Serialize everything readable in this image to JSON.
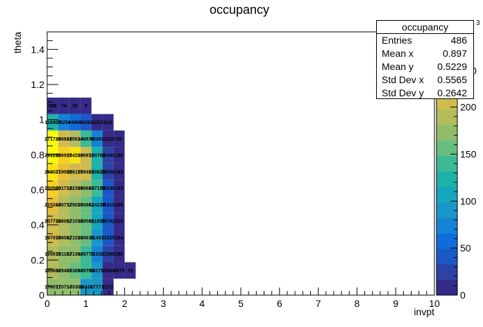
{
  "chart_data": {
    "type": "heatmap",
    "title": "occupancy",
    "xlabel": "invpt",
    "ylabel": "theta",
    "xlim": [
      0,
      10
    ],
    "ylim": [
      0,
      1.5
    ],
    "x_ticks": [
      "0",
      "1",
      "2",
      "3",
      "4",
      "5",
      "6",
      "7",
      "8",
      "9",
      "10"
    ],
    "y_ticks": [
      "0",
      "0.2",
      "0.4",
      "0.6",
      "0.8",
      "1",
      "1.2",
      "1.4"
    ],
    "x_bin_width": 0.2857,
    "y_bin_width": 0.0938,
    "cells": [
      {
        "x": 0,
        "y": 0,
        "label": "170071",
        "value": 170
      },
      {
        "x": 1,
        "y": 0,
        "label": "170714",
        "value": 170
      },
      {
        "x": 2,
        "y": 0,
        "label": "170302",
        "value": 170
      },
      {
        "x": 3,
        "y": 0,
        "label": "94432",
        "value": 94
      },
      {
        "x": 4,
        "y": 0,
        "label": "87771",
        "value": 88
      },
      {
        "x": 5,
        "y": 0,
        "label": "5172",
        "value": 5
      },
      {
        "x": 0,
        "y": 1,
        "label": "189658",
        "value": 190
      },
      {
        "x": 1,
        "y": 1,
        "label": "178407",
        "value": 178
      },
      {
        "x": 2,
        "y": 1,
        "label": "163890",
        "value": 164
      },
      {
        "x": 3,
        "y": 1,
        "label": "139763",
        "value": 140
      },
      {
        "x": 4,
        "y": 1,
        "label": "84175",
        "value": 84
      },
      {
        "x": 5,
        "y": 1,
        "label": "15544",
        "value": 16
      },
      {
        "x": 6,
        "y": 1,
        "label": "9675",
        "value": 10
      },
      {
        "x": 7,
        "y": 1,
        "label": "73",
        "value": 0.07
      },
      {
        "x": 0,
        "y": 2,
        "label": "195675",
        "value": 196
      },
      {
        "x": 1,
        "y": 2,
        "label": "181183",
        "value": 181
      },
      {
        "x": 2,
        "y": 2,
        "label": "171360",
        "value": 171
      },
      {
        "x": 3,
        "y": 2,
        "label": "139778",
        "value": 140
      },
      {
        "x": 4,
        "y": 2,
        "label": "71192",
        "value": 71
      },
      {
        "x": 5,
        "y": 2,
        "label": "21088",
        "value": 21
      },
      {
        "x": 6,
        "y": 2,
        "label": "160",
        "value": 0.16
      },
      {
        "x": 0,
        "y": 3,
        "label": "197976",
        "value": 198
      },
      {
        "x": 1,
        "y": 3,
        "label": "186082",
        "value": 186
      },
      {
        "x": 2,
        "y": 3,
        "label": "171020",
        "value": 171
      },
      {
        "x": 3,
        "y": 3,
        "label": "149610",
        "value": 150
      },
      {
        "x": 4,
        "y": 3,
        "label": "91453",
        "value": 91
      },
      {
        "x": 5,
        "y": 3,
        "label": "33325",
        "value": 33
      },
      {
        "x": 6,
        "y": 3,
        "label": "164",
        "value": 0.16
      },
      {
        "x": 0,
        "y": 4,
        "label": "207738",
        "value": 208
      },
      {
        "x": 1,
        "y": 4,
        "label": "186092",
        "value": 186
      },
      {
        "x": 2,
        "y": 4,
        "label": "171035",
        "value": 171
      },
      {
        "x": 3,
        "y": 4,
        "label": "149560",
        "value": 150
      },
      {
        "x": 4,
        "y": 4,
        "label": "111859",
        "value": 112
      },
      {
        "x": 5,
        "y": 4,
        "label": "34742",
        "value": 35
      },
      {
        "x": 6,
        "y": 4,
        "label": "215",
        "value": 0.22
      },
      {
        "x": 0,
        "y": 5,
        "label": "215249",
        "value": 215
      },
      {
        "x": 1,
        "y": 5,
        "label": "190772",
        "value": 191
      },
      {
        "x": 2,
        "y": 5,
        "label": "179026",
        "value": 179
      },
      {
        "x": 3,
        "y": 5,
        "label": "150863",
        "value": 151
      },
      {
        "x": 4,
        "y": 5,
        "label": "114233",
        "value": 114
      },
      {
        "x": 5,
        "y": 5,
        "label": "35310",
        "value": 35
      },
      {
        "x": 6,
        "y": 5,
        "label": "269",
        "value": 0.27
      },
      {
        "x": 0,
        "y": 6,
        "label": "230500",
        "value": 231
      },
      {
        "x": 1,
        "y": 6,
        "label": "201712",
        "value": 202
      },
      {
        "x": 2,
        "y": 6,
        "label": "192399",
        "value": 192
      },
      {
        "x": 3,
        "y": 6,
        "label": "168666",
        "value": 169
      },
      {
        "x": 4,
        "y": 6,
        "label": "137158",
        "value": 137
      },
      {
        "x": 5,
        "y": 6,
        "label": "36248",
        "value": 36
      },
      {
        "x": 6,
        "y": 6,
        "label": "193",
        "value": 0.19
      },
      {
        "x": 0,
        "y": 7,
        "label": "260027",
        "value": 260
      },
      {
        "x": 1,
        "y": 7,
        "label": "219002",
        "value": 219
      },
      {
        "x": 2,
        "y": 7,
        "label": "206117",
        "value": 206
      },
      {
        "x": 3,
        "y": 7,
        "label": "208455",
        "value": 208
      },
      {
        "x": 4,
        "y": 7,
        "label": "120823",
        "value": 121
      },
      {
        "x": 5,
        "y": 7,
        "label": "28596",
        "value": 29
      },
      {
        "x": 6,
        "y": 7,
        "label": "183",
        "value": 0.18
      },
      {
        "x": 0,
        "y": 8,
        "label": "292259",
        "value": 292
      },
      {
        "x": 1,
        "y": 8,
        "label": "236912",
        "value": 237
      },
      {
        "x": 2,
        "y": 8,
        "label": "254209",
        "value": 254
      },
      {
        "x": 3,
        "y": 8,
        "label": "198879",
        "value": 199
      },
      {
        "x": 4,
        "y": 8,
        "label": "120762",
        "value": 121
      },
      {
        "x": 5,
        "y": 8,
        "label": "26440",
        "value": 26
      },
      {
        "x": 6,
        "y": 8,
        "label": "186",
        "value": 0.19
      },
      {
        "x": 0,
        "y": 9,
        "label": "271736",
        "value": 272
      },
      {
        "x": 1,
        "y": 9,
        "label": "198841",
        "value": 199
      },
      {
        "x": 2,
        "y": 9,
        "label": "195634",
        "value": 196
      },
      {
        "x": 3,
        "y": 9,
        "label": "146670",
        "value": 147
      },
      {
        "x": 4,
        "y": 9,
        "label": "68391",
        "value": 68
      },
      {
        "x": 5,
        "y": 9,
        "label": "12225",
        "value": 12
      },
      {
        "x": 6,
        "y": 9,
        "label": "65",
        "value": 0.07
      },
      {
        "x": 0,
        "y": 10,
        "label": "118907",
        "value": 119
      },
      {
        "x": 1,
        "y": 10,
        "label": "76254",
        "value": 76
      },
      {
        "x": 2,
        "y": 10,
        "label": "64968",
        "value": 65
      },
      {
        "x": 3,
        "y": 10,
        "label": "36393",
        "value": 36
      },
      {
        "x": 4,
        "y": 10,
        "label": "10311",
        "value": 10
      },
      {
        "x": 5,
        "y": 10,
        "label": "613",
        "value": 0.61
      },
      {
        "x": 0,
        "y": 11,
        "label": "586",
        "value": 0.59
      },
      {
        "x": 1,
        "y": 11,
        "label": "74",
        "value": 0.07
      },
      {
        "x": 2,
        "y": 11,
        "label": "30",
        "value": 0.03
      },
      {
        "x": 3,
        "y": 11,
        "label": "9",
        "value": 0.01
      }
    ],
    "palette": [
      "#352a87",
      "#2c42a4",
      "#1a58c6",
      "#0f6cd9",
      "#1483d4",
      "#1996c8",
      "#16a6bd",
      "#1fb2a8",
      "#3cba95",
      "#68be7e",
      "#90bd6b",
      "#b4bc5c",
      "#d0bc4e",
      "#e8bf36",
      "#f6cf25",
      "#f9e216",
      "#f9fb0e"
    ],
    "color_scale": {
      "min": 0,
      "max": 280,
      "ticks": [
        "0",
        "50",
        "100",
        "150",
        "200"
      ],
      "partial_ticks": [
        "3",
        "0"
      ]
    },
    "stats": {
      "title": "occupancy",
      "rows": [
        {
          "label": "Entries",
          "value": "486"
        },
        {
          "label": "Mean x",
          "value": "0.897"
        },
        {
          "label": "Mean y",
          "value": "0.5229"
        },
        {
          "label": "Std Dev x",
          "value": "0.5565"
        },
        {
          "label": "Std Dev y",
          "value": "0.2642"
        }
      ]
    }
  }
}
